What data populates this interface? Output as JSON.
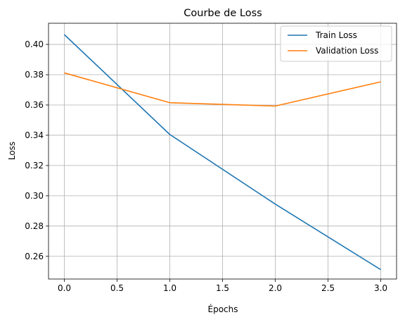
{
  "chart_data": {
    "type": "line",
    "title": "Courbe de Loss",
    "xlabel": "Épochs",
    "ylabel": "Loss",
    "x": [
      0,
      1,
      2,
      3
    ],
    "xlim": [
      -0.15,
      3.15
    ],
    "ylim": [
      0.245,
      0.414
    ],
    "xticks": [
      0.0,
      0.5,
      1.0,
      1.5,
      2.0,
      2.5,
      3.0
    ],
    "xtick_labels": [
      "0.0",
      "0.5",
      "1.0",
      "1.5",
      "2.0",
      "2.5",
      "3.0"
    ],
    "yticks": [
      0.26,
      0.28,
      0.3,
      0.32,
      0.34,
      0.36,
      0.38,
      0.4
    ],
    "ytick_labels": [
      "0.26",
      "0.28",
      "0.30",
      "0.32",
      "0.34",
      "0.36",
      "0.38",
      "0.40"
    ],
    "grid": true,
    "legend_position": "top-right",
    "series": [
      {
        "name": "Train Loss",
        "values": [
          0.4065,
          0.3405,
          0.2945,
          0.2512
        ],
        "color": "#1f77b4"
      },
      {
        "name": "Validation Loss",
        "values": [
          0.3812,
          0.3615,
          0.3593,
          0.3753
        ],
        "color": "#ff7f0e"
      }
    ]
  }
}
